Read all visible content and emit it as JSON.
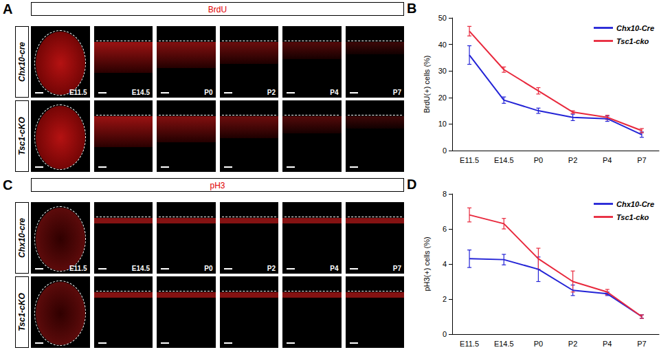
{
  "figure": {
    "image_panels": [
      {
        "label": "A",
        "title": "BrdU",
        "rows": [
          "Chx10-cre",
          "Tsc1-cKO"
        ],
        "stages": [
          "E11.5",
          "E14.5",
          "P0",
          "P2",
          "P4",
          "P7"
        ]
      },
      {
        "label": "C",
        "title": "pH3",
        "rows": [
          "Chx10-cre",
          "Tsc1-cKO"
        ],
        "stages": [
          "E11.5",
          "E14.5",
          "P0",
          "P2",
          "P4",
          "P7"
        ]
      }
    ]
  },
  "chart_data": [
    {
      "type": "line",
      "annotations": [
        "B"
      ],
      "categories": [
        "E11.5",
        "E14.5",
        "P0",
        "P2",
        "P4",
        "P7"
      ],
      "ylabel": "BrdU(+) cells (%)",
      "ylim": [
        0,
        50
      ],
      "yticks": [
        0,
        10,
        20,
        30,
        40,
        50
      ],
      "grid": false,
      "legend": "upper right",
      "series": [
        {
          "name": "Chx10-Cre",
          "color": "#2323d6",
          "values": [
            36,
            19,
            15,
            12.5,
            12,
            6
          ],
          "error": [
            3.5,
            1.2,
            1,
            1.2,
            1,
            1
          ]
        },
        {
          "name": "Tsc1-cko",
          "color": "#e8283c",
          "values": [
            45,
            30.5,
            22.5,
            14.5,
            12.5,
            7.5
          ],
          "error": [
            1.8,
            1,
            1.2,
            0.5,
            0.8,
            0.8
          ]
        }
      ]
    },
    {
      "type": "line",
      "annotations": [
        "D"
      ],
      "categories": [
        "E11.5",
        "E14.5",
        "P0",
        "P2",
        "P4",
        "P7"
      ],
      "ylabel": "pH3(+) cells (%)",
      "ylim": [
        0,
        8
      ],
      "yticks": [
        0,
        2,
        4,
        6,
        8
      ],
      "grid": false,
      "legend": "upper right",
      "series": [
        {
          "name": "Chx10-Cre",
          "color": "#2323d6",
          "values": [
            4.3,
            4.25,
            3.7,
            2.5,
            2.3,
            1.0
          ],
          "error": [
            0.5,
            0.3,
            0.7,
            0.3,
            0.1,
            0.1
          ]
        },
        {
          "name": "Tsc1-cko",
          "color": "#e8283c",
          "values": [
            6.8,
            6.3,
            4.3,
            3.0,
            2.4,
            1.0
          ],
          "error": [
            0.4,
            0.3,
            0.6,
            0.6,
            0.15,
            0.1
          ]
        }
      ]
    }
  ]
}
